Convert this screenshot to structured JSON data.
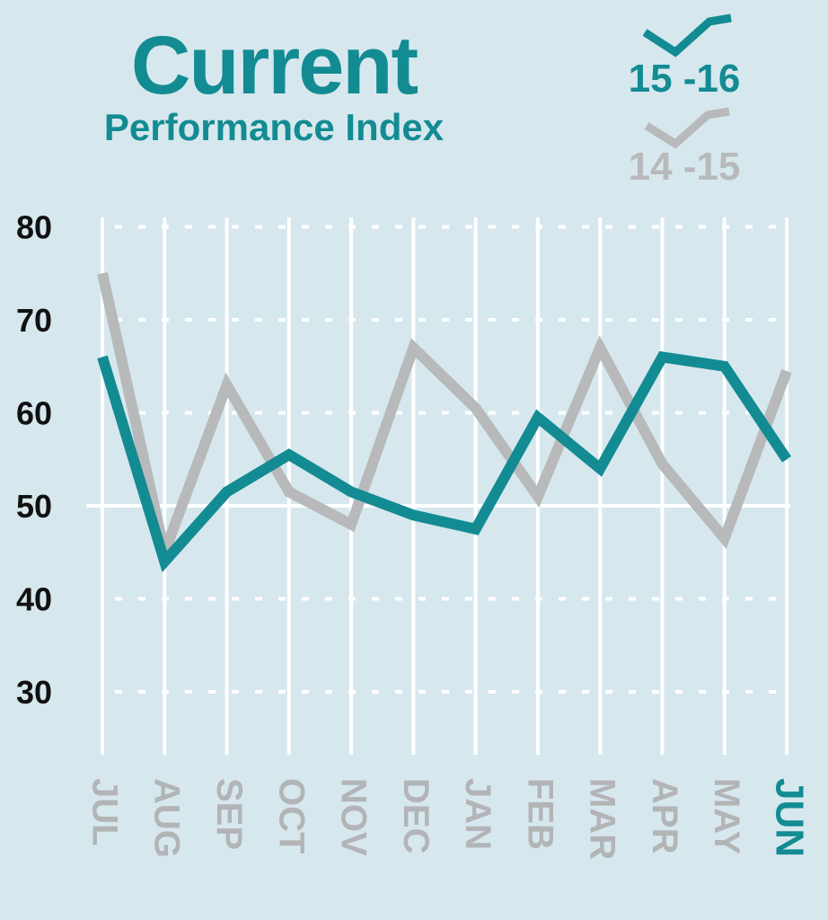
{
  "colors": {
    "background": "#d6e8ee",
    "series_current": "#138b93",
    "series_previous": "#b8b9bb",
    "grid": "#ffffff",
    "tick_label": "#111111",
    "month_label": "#b3b4b6",
    "highlight_month": "#138b93"
  },
  "title": {
    "main": "Current",
    "sub": "Performance Index"
  },
  "legend": {
    "items": [
      {
        "label": "15 -16",
        "series": "current"
      },
      {
        "label": "14 -15",
        "series": "previous"
      }
    ],
    "placement": "top-right"
  },
  "chart_data": {
    "type": "line",
    "title": "Current Performance Index",
    "categories": [
      "JUL",
      "AUG",
      "SEP",
      "OCT",
      "NOV",
      "DEC",
      "JAN",
      "FEB",
      "MAR",
      "APR",
      "MAY",
      "JUN"
    ],
    "highlight_category": "JUN",
    "ylim": [
      25,
      80
    ],
    "yticks": [
      30,
      40,
      50,
      60,
      70,
      80
    ],
    "grid": true,
    "series": [
      {
        "name": "15 -16",
        "key": "current",
        "values": [
          66,
          44,
          51.5,
          55.5,
          51.5,
          49,
          47.5,
          59.5,
          54,
          66,
          65,
          55
        ]
      },
      {
        "name": "14 -15",
        "key": "previous",
        "values": [
          75,
          45,
          63,
          51.5,
          48,
          67,
          60.5,
          51,
          67,
          54.5,
          46.5,
          64.5
        ]
      }
    ]
  }
}
